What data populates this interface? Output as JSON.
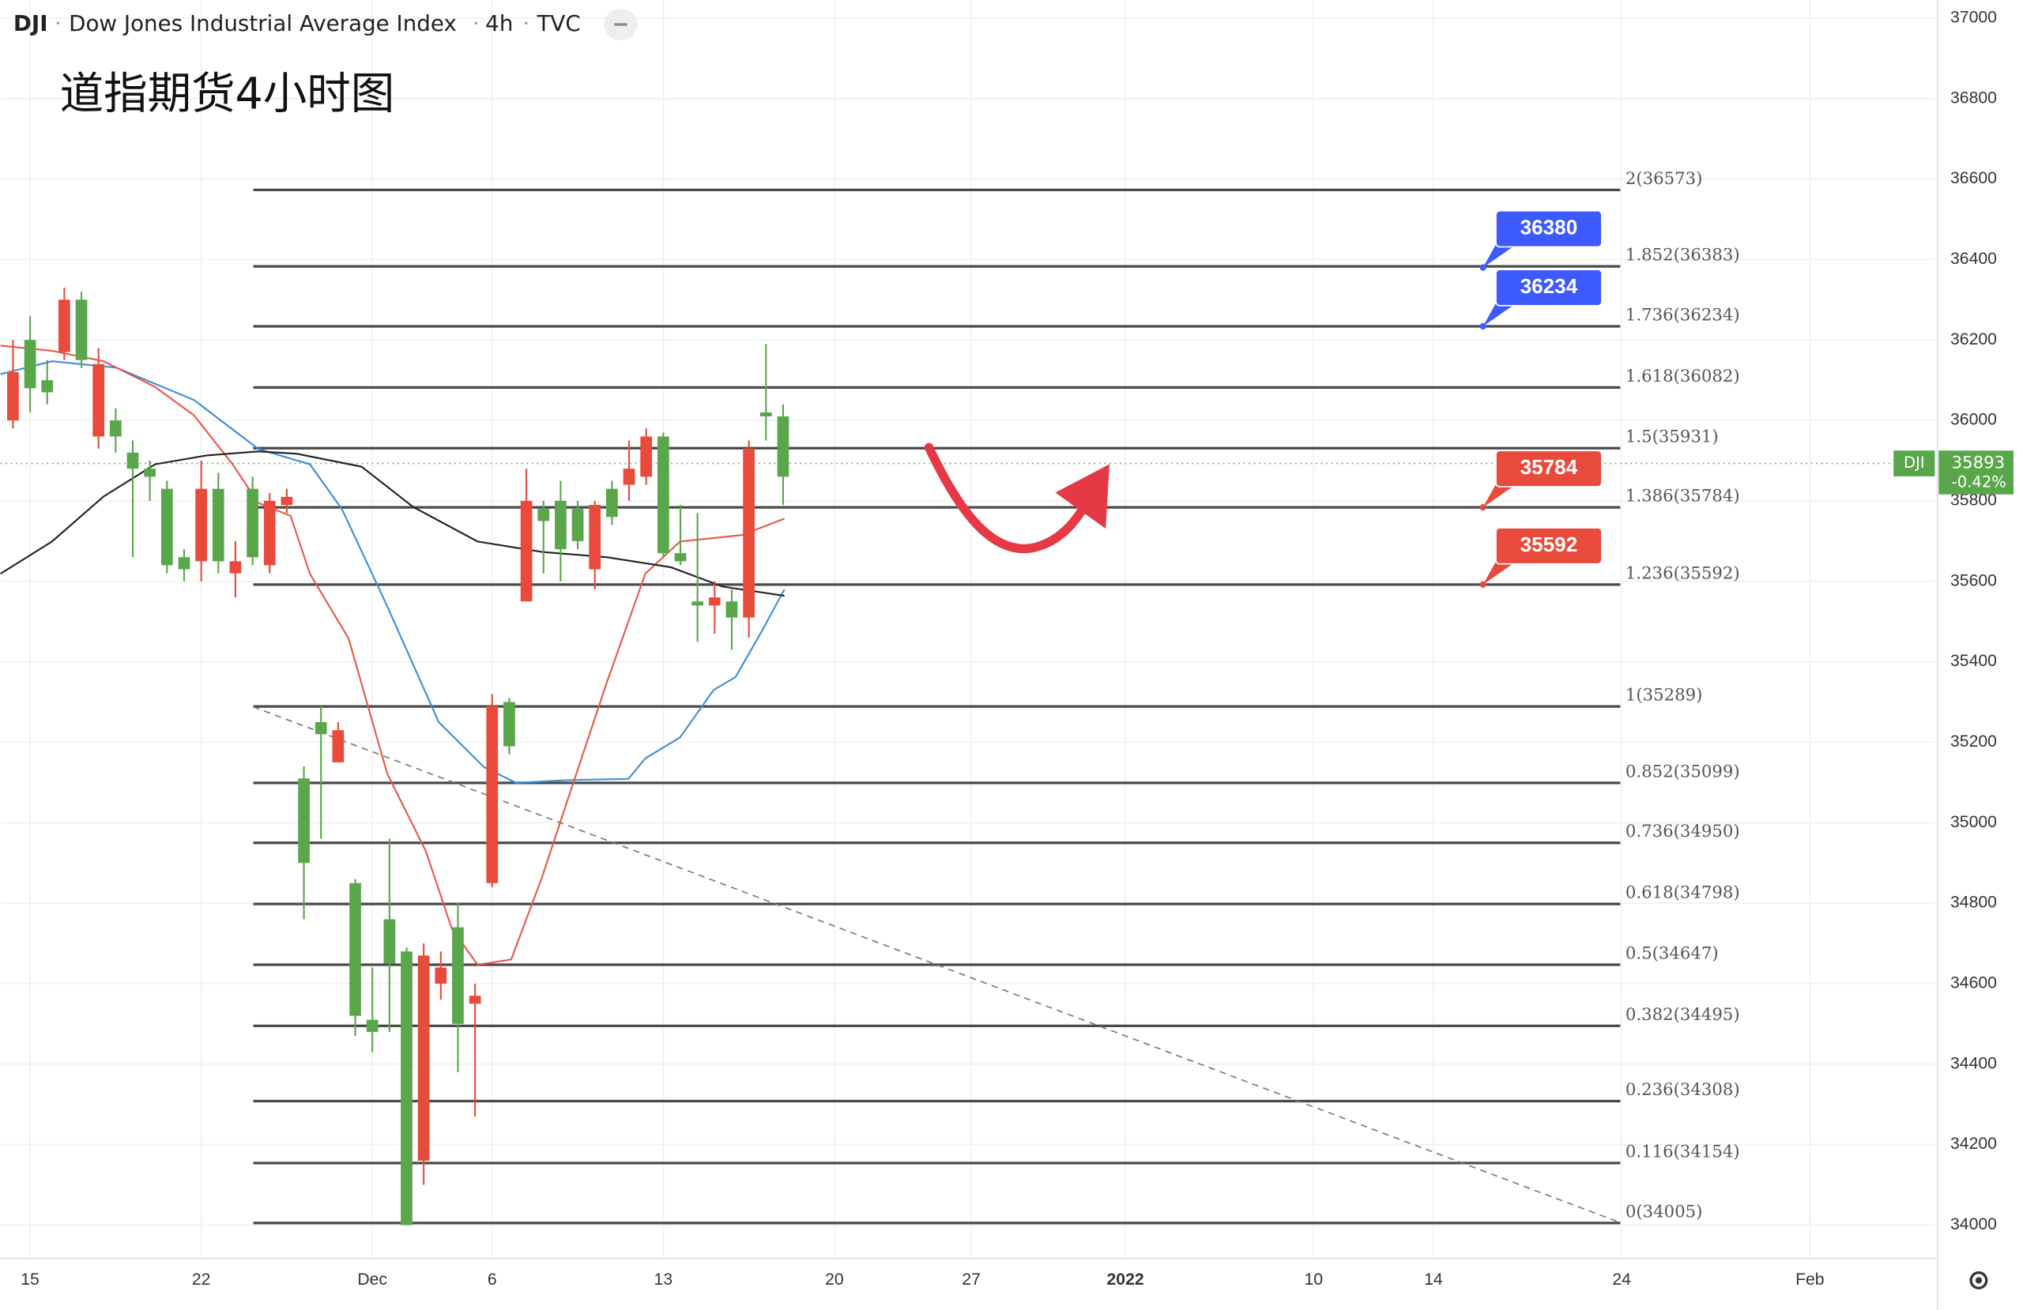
{
  "header": {
    "symbol": "DJI",
    "name": "Dow Jones Industrial Average Index",
    "interval": "4h",
    "source": "TVC"
  },
  "chart_data": {
    "type": "candlestick",
    "title": "道指期货4小时图",
    "up_color": "#5aa64b",
    "down_color": "#e84b3c",
    "x": [
      -1,
      0,
      1,
      2,
      3,
      4,
      5,
      6,
      7,
      8,
      9,
      10,
      11,
      12,
      13,
      14,
      15,
      16,
      17,
      18,
      19,
      20,
      21,
      22,
      23,
      24,
      25,
      26,
      27,
      28,
      29,
      30,
      31,
      32,
      33,
      34,
      35,
      36,
      37,
      38,
      39,
      40,
      41,
      42,
      43,
      44
    ],
    "open": [
      36120,
      36080,
      36070,
      36300,
      36150,
      36140,
      35960,
      35880,
      35860,
      35640,
      35630,
      35830,
      35650,
      35650,
      35660,
      35800,
      35810,
      34900,
      35220,
      35230,
      34520,
      34480,
      34650,
      34000,
      34670,
      34640,
      34500,
      34570,
      35290,
      35190,
      35800,
      35750,
      35680,
      35700,
      35790,
      35760,
      35880,
      35960,
      35670,
      35650,
      35540,
      35560,
      35510,
      35930,
      36010,
      35860
    ],
    "high": [
      36200,
      36260,
      36150,
      36330,
      36320,
      36180,
      36030,
      35950,
      35900,
      35850,
      35680,
      35900,
      35870,
      35700,
      35860,
      35820,
      35830,
      35140,
      35290,
      35250,
      34860,
      34640,
      34960,
      34690,
      34700,
      34680,
      34800,
      34600,
      35320,
      35310,
      35880,
      35800,
      35850,
      35800,
      35800,
      35850,
      35950,
      35980,
      35970,
      35790,
      35770,
      35600,
      35580,
      35950,
      36190,
      36040
    ],
    "low": [
      35980,
      36020,
      36040,
      36150,
      36130,
      35930,
      35920,
      35660,
      35800,
      35620,
      35600,
      35600,
      35620,
      35560,
      35640,
      35620,
      35770,
      34760,
      34960,
      35150,
      34470,
      34430,
      34480,
      34000,
      34100,
      34560,
      34380,
      34270,
      34840,
      35170,
      35550,
      35620,
      35600,
      35680,
      35580,
      35740,
      35800,
      35840,
      35660,
      35640,
      35450,
      35470,
      35430,
      35460,
      35950,
      35790
    ],
    "close": [
      36000,
      36200,
      36100,
      36170,
      36300,
      35960,
      36000,
      35920,
      35880,
      35830,
      35660,
      35650,
      35830,
      35620,
      35830,
      35640,
      35790,
      35110,
      35250,
      35150,
      34850,
      34510,
      34760,
      34680,
      34160,
      34600,
      34740,
      34550,
      34850,
      35300,
      35550,
      35780,
      35800,
      35780,
      35630,
      35830,
      35840,
      35860,
      35960,
      35670,
      35550,
      35540,
      35550,
      35510,
      36020,
      36010
    ],
    "xlim": [
      -1.73,
      111.3
    ],
    "xticks": [
      {
        "value": 0,
        "label": "15"
      },
      {
        "value": 10,
        "label": "22"
      },
      {
        "value": 20,
        "label": "Dec"
      },
      {
        "value": 27,
        "label": "6"
      },
      {
        "value": 37,
        "label": "13"
      },
      {
        "value": 47,
        "label": "20"
      },
      {
        "value": 55,
        "label": "27"
      },
      {
        "value": 64,
        "label": "2022"
      },
      {
        "value": 75,
        "label": "10"
      },
      {
        "value": 82,
        "label": "14"
      },
      {
        "value": 93,
        "label": "24"
      },
      {
        "value": 104,
        "label": "Feb"
      }
    ],
    "ylim": [
      33917,
      37045
    ],
    "yticks": [
      34000,
      34200,
      34400,
      34600,
      34800,
      35000,
      35200,
      35400,
      35600,
      35800,
      36000,
      36200,
      36400,
      36600,
      36800,
      37000
    ],
    "moving_averages": [
      {
        "color": "#3d8fd9",
        "x": [
          -1.73,
          1.28,
          5.05,
          9.57,
          13.34,
          16.35,
          18.23,
          20.87,
          23.88,
          26.53,
          28.41,
          31.42,
          34.96,
          35.95,
          37.98,
          39.94,
          41.22,
          42.73,
          44.08
        ],
        "values": [
          36115,
          36147,
          36131,
          36051,
          35929,
          35891,
          35779,
          35538,
          35250,
          35138,
          35099,
          35106,
          35109,
          35160,
          35212,
          35330,
          35362,
          35474,
          35580
        ]
      },
      {
        "color": "#e8574a",
        "x": [
          -1.73,
          1.28,
          4.3,
          7.31,
          9.57,
          11.83,
          13.34,
          15.22,
          16.35,
          18.61,
          20.87,
          23.13,
          24.64,
          26.15,
          28.11,
          29.92,
          31.42,
          33.68,
          35.95,
          37.98,
          41.6,
          44.08
        ],
        "values": [
          36186,
          36173,
          36147,
          36083,
          36013,
          35891,
          35795,
          35763,
          35619,
          35458,
          35122,
          34929,
          34737,
          34647,
          34660,
          34865,
          35058,
          35346,
          35619,
          35699,
          35715,
          35756
        ]
      },
      {
        "color": "#222222",
        "x": [
          -1.73,
          1.28,
          4.3,
          7.31,
          10.32,
          13.34,
          15.6,
          19.37,
          22.38,
          26.15,
          29.92,
          33.68,
          37.45,
          40.46,
          44.08
        ],
        "values": [
          35619,
          35699,
          35811,
          35891,
          35913,
          35923,
          35917,
          35885,
          35785,
          35699,
          35673,
          35660,
          35635,
          35587,
          35564
        ]
      }
    ],
    "fib_x": [
      13.04,
      92.92
    ],
    "fib_color": "#4a4a4a",
    "fib_levels": [
      {
        "value": 36573,
        "label": "2(36573)"
      },
      {
        "value": 36383,
        "label": "1.852(36383)"
      },
      {
        "value": 36234,
        "label": "1.736(36234)"
      },
      {
        "value": 36082,
        "label": "1.618(36082)"
      },
      {
        "value": 35931,
        "label": "1.5(35931)"
      },
      {
        "value": 35784,
        "label": "1.386(35784)"
      },
      {
        "value": 35592,
        "label": "1.236(35592)"
      },
      {
        "value": 35289,
        "label": "1(35289)"
      },
      {
        "value": 35099,
        "label": "0.852(35099)"
      },
      {
        "value": 34950,
        "label": "0.736(34950)"
      },
      {
        "value": 34798,
        "label": "0.618(34798)"
      },
      {
        "value": 34647,
        "label": "0.5(34647)"
      },
      {
        "value": 34495,
        "label": "0.382(34495)"
      },
      {
        "value": 34308,
        "label": "0.236(34308)"
      },
      {
        "value": 34154,
        "label": "0.116(34154)"
      },
      {
        "value": 34005,
        "label": "0(34005)"
      }
    ],
    "trendline": {
      "color": "#777777",
      "x": [
        13.04,
        92.92
      ],
      "values": [
        35288,
        34006
      ]
    },
    "callouts": [
      {
        "value": 36380,
        "x": 84.9,
        "color": "#3d5afe"
      },
      {
        "value": 36234,
        "x": 84.9,
        "color": "#3d5afe"
      },
      {
        "value": 35784,
        "x": 84.9,
        "color": "#e84b3c"
      },
      {
        "value": 35592,
        "x": 84.9,
        "color": "#e84b3c"
      }
    ],
    "last_price": {
      "label": "DJI",
      "value": 35893,
      "change": "-0.42%",
      "color": "#5aa64b"
    }
  }
}
